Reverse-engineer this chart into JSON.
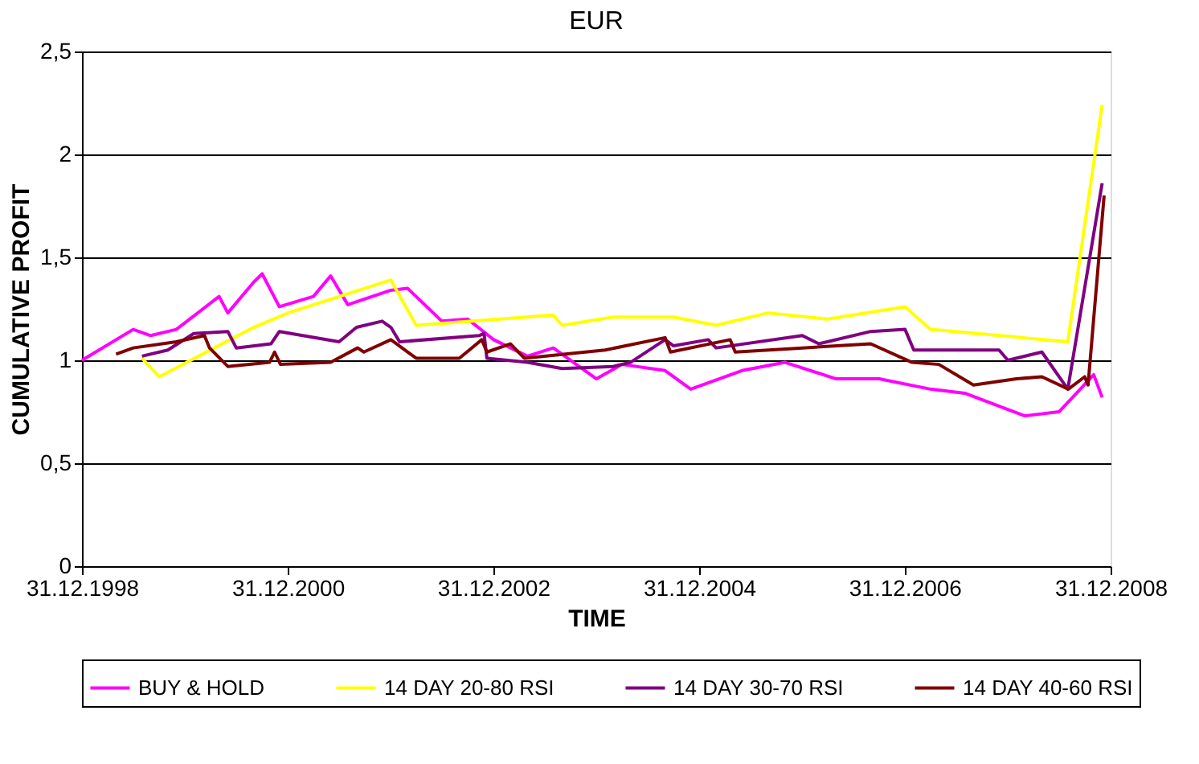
{
  "chart_data": {
    "type": "line",
    "title": "EUR",
    "xlabel": "TIME",
    "ylabel": "CUMULATIVE PROFIT",
    "xlim": [
      "1998-12-31",
      "2008-12-31"
    ],
    "ylim": [
      0,
      2.5
    ],
    "xticks": [
      {
        "value": "1998-12-31",
        "label": "31.12.1998"
      },
      {
        "value": "2000-12-31",
        "label": "31.12.2000"
      },
      {
        "value": "2002-12-31",
        "label": "31.12.2002"
      },
      {
        "value": "2004-12-31",
        "label": "31.12.2004"
      },
      {
        "value": "2006-12-31",
        "label": "31.12.2006"
      },
      {
        "value": "2008-12-31",
        "label": "31.12.2008"
      }
    ],
    "yticks": [
      0,
      {
        "value": 0.5,
        "label": "0,5"
      },
      1,
      {
        "value": 1.5,
        "label": "1,5"
      },
      2,
      {
        "value": 2.5,
        "label": "2,5"
      }
    ],
    "grid": "y",
    "legend": "bottom",
    "marker": "none",
    "line_style": "solid",
    "series": [
      {
        "name": "BUY & HOLD",
        "color": "#ff00ff",
        "x": [
          "1998-12-31",
          "1999-07",
          "1999-09",
          "1999-12",
          "2000-05",
          "2000-06",
          "2000-09",
          "2000-10",
          "2000-12",
          "2001-04",
          "2001-06",
          "2001-08",
          "2002-01",
          "2002-03",
          "2002-07",
          "2002-10",
          "2003-01",
          "2003-05",
          "2003-08",
          "2004-01",
          "2004-04",
          "2004-09",
          "2004-12",
          "2005-06",
          "2005-11",
          "2006-05",
          "2006-10",
          "2007-04",
          "2007-08",
          "2008-03",
          "2008-07",
          "2008-09",
          "2008-11",
          "2008-12"
        ],
        "values": [
          1.0,
          1.15,
          1.12,
          1.15,
          1.31,
          1.23,
          1.38,
          1.42,
          1.26,
          1.31,
          1.41,
          1.27,
          1.34,
          1.35,
          1.19,
          1.2,
          1.1,
          1.02,
          1.06,
          0.91,
          0.98,
          0.95,
          0.86,
          0.95,
          0.99,
          0.91,
          0.91,
          0.86,
          0.84,
          0.73,
          0.75,
          0.84,
          0.93,
          0.82
        ]
      },
      {
        "name": "14 DAY 20-80 RSI",
        "color": "#ffff00",
        "x": [
          "1999-08",
          "1999-10",
          "2000-09",
          "2001-01",
          "2002-01",
          "2002-04",
          "2003-08",
          "2003-09",
          "2004-03",
          "2004-10",
          "2005-03",
          "2005-09",
          "2006-04",
          "2007-01",
          "2007-04",
          "2008-08",
          "2008-12"
        ],
        "values": [
          1.01,
          0.92,
          1.16,
          1.23,
          1.39,
          1.17,
          1.22,
          1.17,
          1.21,
          1.21,
          1.17,
          1.23,
          1.2,
          1.26,
          1.15,
          1.09,
          2.24
        ]
      },
      {
        "name": "14 DAY 30-70 RSI",
        "color": "#800080",
        "x": [
          "1999-08",
          "1999-11",
          "2000-02",
          "2000-06",
          "2000-07",
          "2000-11",
          "2000-12",
          "2001-07",
          "2001-09",
          "2001-12",
          "2002-01",
          "2002-02",
          "2002-11-10",
          "2002-11-28",
          "2002-12-08",
          "2003-05",
          "2003-09",
          "2004-03",
          "2004-05",
          "2004-09",
          "2004-10",
          "2005-02",
          "2005-03",
          "2006-01",
          "2006-03",
          "2006-09",
          "2007-01",
          "2007-02",
          "2007-12",
          "2008-01",
          "2008-05",
          "2008-08",
          "2008-12"
        ],
        "values": [
          1.02,
          1.05,
          1.13,
          1.14,
          1.06,
          1.08,
          1.14,
          1.09,
          1.16,
          1.19,
          1.16,
          1.09,
          1.12,
          1.13,
          1.01,
          0.99,
          0.96,
          0.97,
          0.99,
          1.1,
          1.07,
          1.1,
          1.06,
          1.12,
          1.08,
          1.14,
          1.15,
          1.05,
          1.05,
          1.0,
          1.04,
          0.86,
          1.86
        ]
      },
      {
        "name": "14 DAY 40-60 RSI",
        "color": "#800000",
        "x": [
          "1999-05",
          "1999-07",
          "1999-12",
          "2000-03-10",
          "2000-03-28",
          "2000-06",
          "2000-10-27",
          "2000-11-14",
          "2000-12-05",
          "2001-06",
          "2001-09-05",
          "2001-09-27",
          "2002-01",
          "2002-04",
          "2002-09",
          "2002-11-20",
          "2002-12-08",
          "2003-03",
          "2003-04-20",
          "2004-02",
          "2004-09-01",
          "2004-09-20",
          "2005-04-20",
          "2005-05-08",
          "2006-01",
          "2006-09",
          "2007-01-26",
          "2007-05",
          "2007-09",
          "2008-02",
          "2008-05",
          "2008-08-03",
          "2008-09-30",
          "2008-10-12",
          "2008-12-08"
        ],
        "values": [
          1.03,
          1.06,
          1.09,
          1.12,
          1.06,
          0.97,
          0.99,
          1.04,
          0.98,
          0.99,
          1.06,
          1.04,
          1.1,
          1.01,
          1.01,
          1.1,
          1.04,
          1.08,
          1.01,
          1.05,
          1.11,
          1.04,
          1.1,
          1.04,
          1.06,
          1.08,
          0.99,
          0.98,
          0.88,
          0.91,
          0.92,
          0.86,
          0.92,
          0.88,
          1.8
        ]
      }
    ]
  }
}
